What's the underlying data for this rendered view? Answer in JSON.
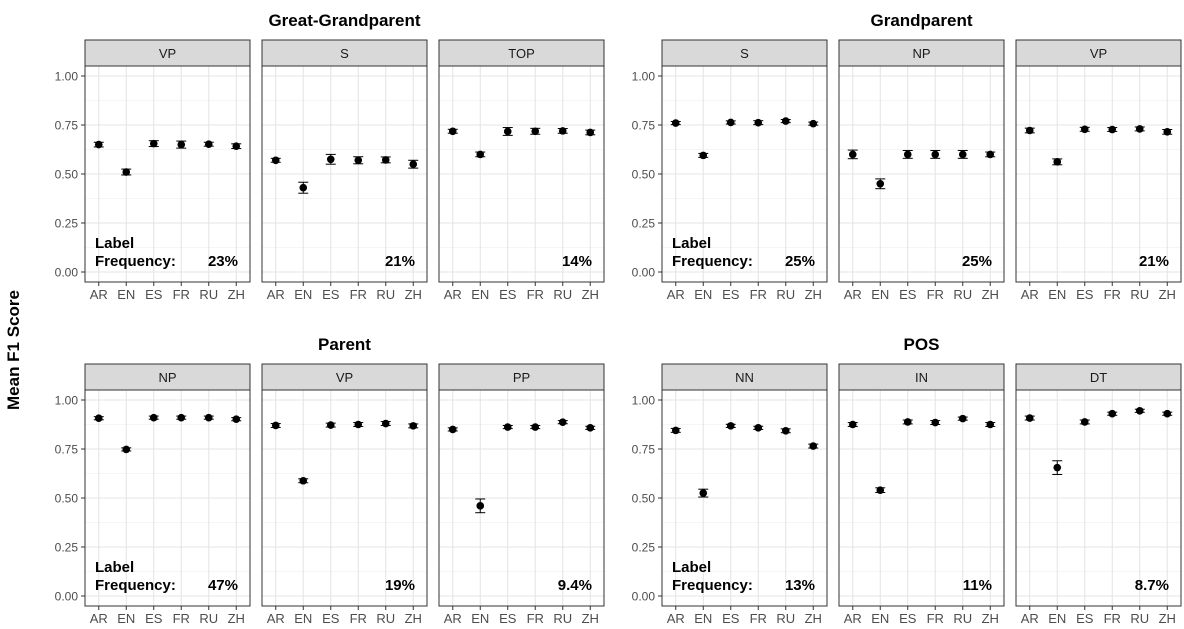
{
  "figure": {
    "ylabel": "Mean F1 Score"
  },
  "chart_data": [
    {
      "type": "scatter",
      "title": "Great-Grandparent",
      "ylim": [
        0,
        1
      ],
      "y_ticks": [
        "0.00",
        "0.25",
        "0.50",
        "0.75",
        "1.00"
      ],
      "categories": [
        "AR",
        "EN",
        "ES",
        "FR",
        "RU",
        "ZH"
      ],
      "grid": true,
      "error_bars": true,
      "label_text": [
        "Label",
        "Frequency:"
      ],
      "panels": [
        {
          "label": "VP",
          "values": [
            0.65,
            0.51,
            0.655,
            0.65,
            0.652,
            0.642
          ],
          "err": [
            0.012,
            0.015,
            0.015,
            0.018,
            0.01,
            0.012
          ],
          "freq": "23%"
        },
        {
          "label": "S",
          "values": [
            0.57,
            0.43,
            0.575,
            0.57,
            0.572,
            0.55
          ],
          "err": [
            0.01,
            0.028,
            0.025,
            0.018,
            0.015,
            0.02
          ],
          "freq": "21%"
        },
        {
          "label": "TOP",
          "values": [
            0.718,
            0.6,
            0.717,
            0.718,
            0.72,
            0.712
          ],
          "err": [
            0.01,
            0.012,
            0.02,
            0.015,
            0.012,
            0.012
          ],
          "freq": "14%"
        }
      ]
    },
    {
      "type": "scatter",
      "title": "Grandparent",
      "ylim": [
        0,
        1
      ],
      "y_ticks": [
        "0.00",
        "0.25",
        "0.50",
        "0.75",
        "1.00"
      ],
      "categories": [
        "AR",
        "EN",
        "ES",
        "FR",
        "RU",
        "ZH"
      ],
      "grid": true,
      "error_bars": true,
      "label_text": [
        "Label",
        "Frequency:"
      ],
      "panels": [
        {
          "label": "S",
          "values": [
            0.76,
            0.595,
            0.763,
            0.762,
            0.77,
            0.757
          ],
          "err": [
            0.008,
            0.01,
            0.008,
            0.01,
            0.008,
            0.008
          ],
          "freq": "25%"
        },
        {
          "label": "NP",
          "values": [
            0.6,
            0.45,
            0.6,
            0.6,
            0.6,
            0.6
          ],
          "err": [
            0.022,
            0.025,
            0.02,
            0.02,
            0.02,
            0.012
          ],
          "freq": "25%"
        },
        {
          "label": "VP",
          "values": [
            0.722,
            0.562,
            0.728,
            0.727,
            0.73,
            0.715
          ],
          "err": [
            0.012,
            0.015,
            0.01,
            0.01,
            0.01,
            0.012
          ],
          "freq": "21%"
        }
      ]
    },
    {
      "type": "scatter",
      "title": "Parent",
      "ylim": [
        0,
        1
      ],
      "y_ticks": [
        "0.00",
        "0.25",
        "0.50",
        "0.75",
        "1.00"
      ],
      "categories": [
        "AR",
        "EN",
        "ES",
        "FR",
        "RU",
        "ZH"
      ],
      "grid": true,
      "error_bars": true,
      "label_text": [
        "Label",
        "Frequency:"
      ],
      "panels": [
        {
          "label": "NP",
          "values": [
            0.907,
            0.748,
            0.91,
            0.91,
            0.91,
            0.902
          ],
          "err": [
            0.008,
            0.008,
            0.008,
            0.008,
            0.008,
            0.008
          ],
          "freq": "47%"
        },
        {
          "label": "VP",
          "values": [
            0.87,
            0.588,
            0.872,
            0.875,
            0.88,
            0.868
          ],
          "err": [
            0.01,
            0.01,
            0.01,
            0.01,
            0.01,
            0.01
          ],
          "freq": "19%"
        },
        {
          "label": "PP",
          "values": [
            0.85,
            0.46,
            0.862,
            0.862,
            0.887,
            0.858
          ],
          "err": [
            0.008,
            0.035,
            0.008,
            0.008,
            0.008,
            0.008
          ],
          "freq": "9.4%"
        }
      ]
    },
    {
      "type": "scatter",
      "title": "POS",
      "ylim": [
        0,
        1
      ],
      "y_ticks": [
        "0.00",
        "0.25",
        "0.50",
        "0.75",
        "1.00"
      ],
      "categories": [
        "AR",
        "EN",
        "ES",
        "FR",
        "RU",
        "ZH"
      ],
      "grid": true,
      "error_bars": true,
      "label_text": [
        "Label",
        "Frequency:"
      ],
      "panels": [
        {
          "label": "NN",
          "values": [
            0.845,
            0.525,
            0.868,
            0.858,
            0.843,
            0.765
          ],
          "err": [
            0.01,
            0.02,
            0.008,
            0.008,
            0.01,
            0.01
          ],
          "freq": "13%"
        },
        {
          "label": "IN",
          "values": [
            0.875,
            0.54,
            0.888,
            0.885,
            0.905,
            0.875
          ],
          "err": [
            0.01,
            0.012,
            0.01,
            0.01,
            0.008,
            0.01
          ],
          "freq": "11%"
        },
        {
          "label": "DT",
          "values": [
            0.908,
            0.655,
            0.888,
            0.93,
            0.945,
            0.93
          ],
          "err": [
            0.01,
            0.035,
            0.01,
            0.008,
            0.008,
            0.008
          ],
          "freq": "8.7%"
        }
      ]
    }
  ]
}
